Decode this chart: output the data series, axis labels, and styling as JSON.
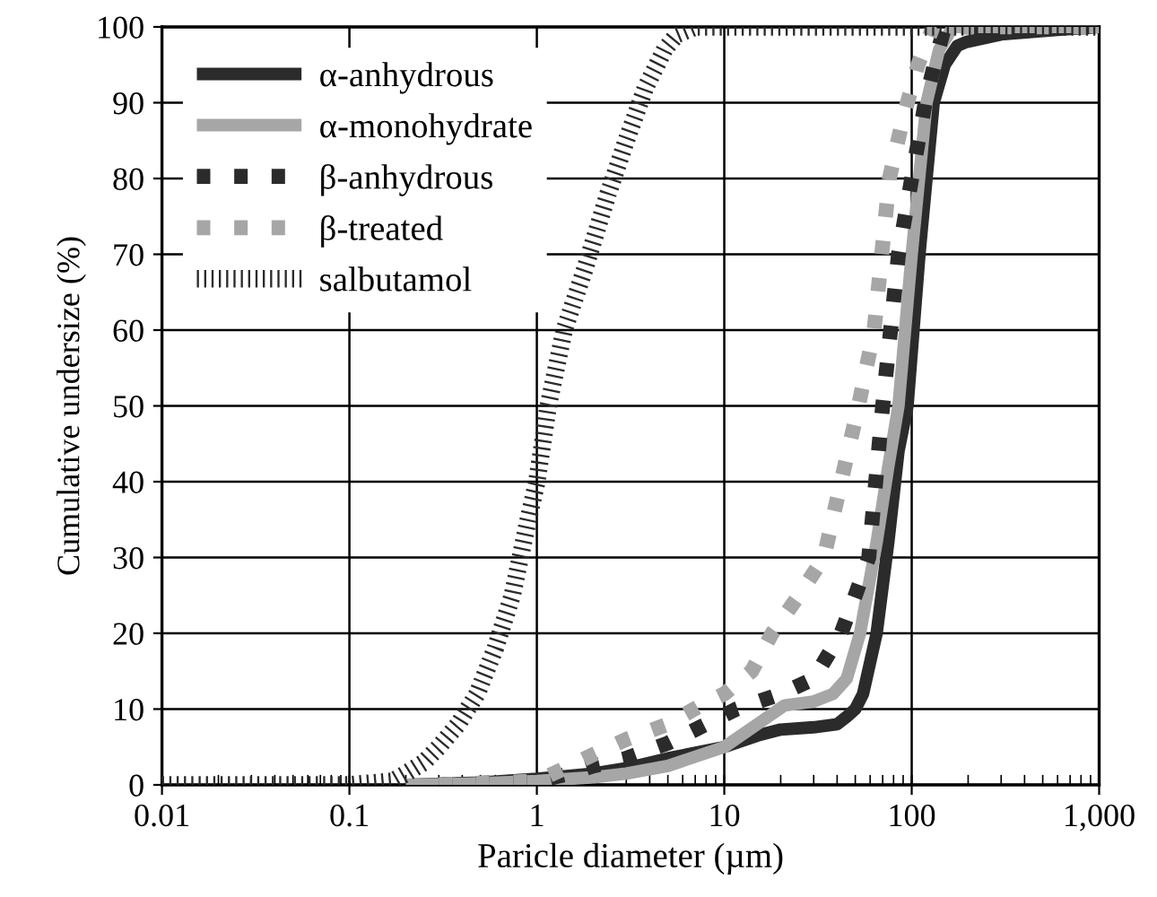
{
  "chart_data": {
    "type": "line",
    "xlabel": "Paricle diameter (µm)",
    "ylabel": "Cumulative undersize (%)",
    "log": "x",
    "xlim": [
      0.01,
      1000
    ],
    "ylim": [
      0,
      100
    ],
    "xticks": [
      0.01,
      0.1,
      1,
      10,
      100,
      {
        "value": 1000,
        "label": "1,000"
      }
    ],
    "yticks": [
      0,
      10,
      20,
      30,
      40,
      50,
      60,
      70,
      80,
      90,
      100
    ],
    "grid": true,
    "legend": "top left",
    "marker": "none",
    "series": [
      {
        "name": "α-anhydrous",
        "color": "#2b2b2b",
        "line_style": "solid",
        "x": [
          0.2,
          0.5,
          1,
          2,
          3,
          5,
          10,
          15,
          20,
          30,
          40,
          45,
          50,
          55,
          65,
          75,
          85,
          95,
          110,
          120,
          131,
          150,
          175,
          195,
          300,
          600,
          1000
        ],
        "values": [
          0,
          0.3,
          0.8,
          1.5,
          2.2,
          3.5,
          5,
          6.5,
          7.3,
          7.6,
          8,
          9,
          10,
          12,
          20,
          32,
          44,
          50,
          70,
          80,
          90,
          95,
          97.5,
          98,
          99,
          99.6,
          100
        ]
      },
      {
        "name": "α-monohydrate",
        "color": "#a6a6a6",
        "line_style": "solid",
        "x": [
          0.2,
          0.5,
          1,
          2,
          3,
          5,
          10,
          15,
          21,
          30,
          38,
          45,
          53,
          65,
          75,
          85,
          100,
          120,
          140,
          166,
          300,
          1000
        ],
        "values": [
          0,
          0.2,
          0.5,
          1,
          1.5,
          2.5,
          5,
          8,
          10.5,
          11,
          12,
          14,
          20,
          32,
          42,
          50,
          70,
          90,
          97,
          100,
          100,
          100
        ]
      },
      {
        "name": "β-anhydrous",
        "color": "#2b2b2b",
        "line_style": "dotted",
        "x": [
          0.3,
          1,
          1.5,
          2,
          3,
          5,
          8,
          11.6,
          20,
          30,
          42,
          50,
          59,
          70,
          85,
          100,
          118,
          135,
          150,
          300,
          1000
        ],
        "values": [
          0,
          0.5,
          1.5,
          2.5,
          3.5,
          5.5,
          8,
          10,
          12,
          14,
          20,
          25,
          30,
          50,
          70,
          80,
          90,
          96,
          100,
          100,
          100
        ]
      },
      {
        "name": "β-treated",
        "color": "#a6a6a6",
        "line_style": "dotted",
        "x": [
          0.3,
          1,
          1.5,
          2,
          3,
          5,
          7.5,
          10,
          14,
          18,
          25,
          34,
          42,
          52,
          63,
          76,
          90,
          108,
          130,
          300,
          1000
        ],
        "values": [
          0,
          0.5,
          2.5,
          4,
          6,
          8,
          10.5,
          12,
          15,
          20,
          25,
          30,
          40,
          50,
          60,
          80,
          88,
          95,
          100,
          100,
          100
        ]
      },
      {
        "name": "salbutamol",
        "color": "#2b2b2b",
        "line_style": "dashed",
        "x": [
          0.01,
          0.1,
          0.17,
          0.2,
          0.25,
          0.3,
          0.38,
          0.48,
          0.6,
          0.74,
          0.9,
          1,
          1.15,
          1.4,
          1.8,
          2.4,
          3,
          3.8,
          4.8,
          5.6,
          7,
          10,
          100,
          1000
        ],
        "values": [
          0,
          0,
          0.5,
          1.5,
          3,
          5,
          8,
          12,
          18,
          25,
          35,
          40,
          50,
          60,
          68,
          78,
          85,
          92,
          97,
          99,
          100,
          100,
          100,
          100
        ]
      }
    ]
  }
}
